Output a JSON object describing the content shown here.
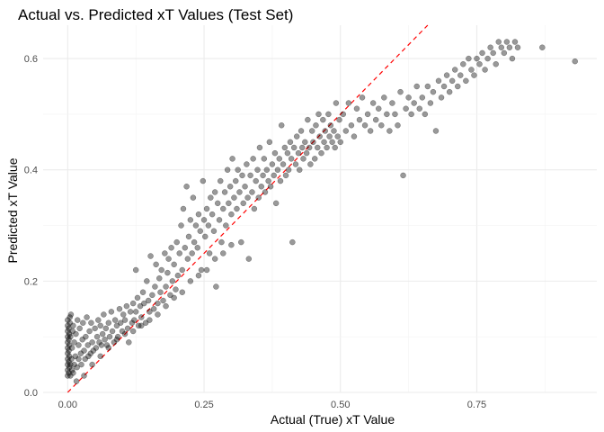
{
  "chart_data": {
    "type": "scatter",
    "title": "Actual vs. Predicted xT Values (Test Set)",
    "xlabel": "Actual (True) xT Value",
    "ylabel": "Predicted xT Value",
    "xlim": [
      -0.045,
      0.97
    ],
    "ylim": [
      0.0,
      0.66
    ],
    "x_ticks": [
      0.0,
      0.25,
      0.5,
      0.75
    ],
    "x_tick_labels": [
      "0.00",
      "0.25",
      "0.50",
      "0.75"
    ],
    "y_ticks": [
      0.0,
      0.2,
      0.4,
      0.6
    ],
    "y_tick_labels": [
      "0.0",
      "0.2",
      "0.4",
      "0.6"
    ],
    "grid": true,
    "legend": "none",
    "reference_line": {
      "type": "identity",
      "slope": 1,
      "intercept": 0,
      "style": "dashed",
      "color": "#ff0000"
    },
    "point_color": "#000000",
    "point_opacity": 0.4,
    "points": [
      [
        0.0,
        0.03
      ],
      [
        0.0,
        0.04
      ],
      [
        0.0,
        0.05
      ],
      [
        0.0,
        0.06
      ],
      [
        0.0,
        0.07
      ],
      [
        0.0,
        0.08
      ],
      [
        0.0,
        0.09
      ],
      [
        0.0,
        0.1
      ],
      [
        0.0,
        0.11
      ],
      [
        0.0,
        0.12
      ],
      [
        0.0,
        0.13
      ],
      [
        0.002,
        0.035
      ],
      [
        0.002,
        0.055
      ],
      [
        0.002,
        0.075
      ],
      [
        0.002,
        0.095
      ],
      [
        0.002,
        0.115
      ],
      [
        0.003,
        0.045
      ],
      [
        0.003,
        0.065
      ],
      [
        0.003,
        0.085
      ],
      [
        0.003,
        0.105
      ],
      [
        0.004,
        0.125
      ],
      [
        0.004,
        0.135
      ],
      [
        0.005,
        0.03
      ],
      [
        0.005,
        0.05
      ],
      [
        0.005,
        0.1
      ],
      [
        0.006,
        0.14
      ],
      [
        0.007,
        0.06
      ],
      [
        0.008,
        0.04
      ],
      [
        0.008,
        0.08
      ],
      [
        0.009,
        0.11
      ],
      [
        0.01,
        0.035
      ],
      [
        0.01,
        0.12
      ],
      [
        0.012,
        0.05
      ],
      [
        0.012,
        0.09
      ],
      [
        0.014,
        0.065
      ],
      [
        0.015,
        0.105
      ],
      [
        0.017,
        0.045
      ],
      [
        0.018,
        0.13
      ],
      [
        0.02,
        0.06
      ],
      [
        0.02,
        0.085
      ],
      [
        0.022,
        0.115
      ],
      [
        0.024,
        0.07
      ],
      [
        0.025,
        0.05
      ],
      [
        0.027,
        0.095
      ],
      [
        0.028,
        0.125
      ],
      [
        0.03,
        0.075
      ],
      [
        0.032,
        0.06
      ],
      [
        0.033,
        0.1
      ],
      [
        0.035,
        0.135
      ],
      [
        0.037,
        0.085
      ],
      [
        0.038,
        0.065
      ],
      [
        0.04,
        0.11
      ],
      [
        0.042,
        0.07
      ],
      [
        0.043,
        0.125
      ],
      [
        0.045,
        0.09
      ],
      [
        0.047,
        0.075
      ],
      [
        0.05,
        0.115
      ],
      [
        0.052,
        0.08
      ],
      [
        0.054,
        0.1
      ],
      [
        0.056,
        0.13
      ],
      [
        0.058,
        0.09
      ],
      [
        0.06,
        0.12
      ],
      [
        0.062,
        0.085
      ],
      [
        0.064,
        0.105
      ],
      [
        0.066,
        0.14
      ],
      [
        0.068,
        0.095
      ],
      [
        0.07,
        0.115
      ],
      [
        0.072,
        0.085
      ],
      [
        0.075,
        0.125
      ],
      [
        0.077,
        0.1
      ],
      [
        0.08,
        0.145
      ],
      [
        0.082,
        0.11
      ],
      [
        0.085,
        0.09
      ],
      [
        0.087,
        0.13
      ],
      [
        0.09,
        0.12
      ],
      [
        0.092,
        0.1
      ],
      [
        0.095,
        0.15
      ],
      [
        0.097,
        0.125
      ],
      [
        0.1,
        0.11
      ],
      [
        0.102,
        0.14
      ],
      [
        0.105,
        0.13
      ],
      [
        0.108,
        0.155
      ],
      [
        0.11,
        0.115
      ],
      [
        0.112,
        0.09
      ],
      [
        0.115,
        0.145
      ],
      [
        0.118,
        0.125
      ],
      [
        0.12,
        0.16
      ],
      [
        0.122,
        0.13
      ],
      [
        0.125,
        0.22
      ],
      [
        0.125,
        0.145
      ],
      [
        0.128,
        0.17
      ],
      [
        0.13,
        0.12
      ],
      [
        0.133,
        0.155
      ],
      [
        0.135,
        0.135
      ],
      [
        0.138,
        0.18
      ],
      [
        0.14,
        0.16
      ],
      [
        0.143,
        0.125
      ],
      [
        0.145,
        0.2
      ],
      [
        0.148,
        0.165
      ],
      [
        0.15,
        0.145
      ],
      [
        0.152,
        0.245
      ],
      [
        0.155,
        0.175
      ],
      [
        0.158,
        0.15
      ],
      [
        0.16,
        0.19
      ],
      [
        0.162,
        0.23
      ],
      [
        0.165,
        0.16
      ],
      [
        0.168,
        0.205
      ],
      [
        0.17,
        0.18
      ],
      [
        0.172,
        0.22
      ],
      [
        0.175,
        0.165
      ],
      [
        0.178,
        0.25
      ],
      [
        0.18,
        0.19
      ],
      [
        0.183,
        0.215
      ],
      [
        0.185,
        0.24
      ],
      [
        0.188,
        0.175
      ],
      [
        0.19,
        0.26
      ],
      [
        0.192,
        0.2
      ],
      [
        0.195,
        0.23
      ],
      [
        0.198,
        0.185
      ],
      [
        0.2,
        0.27
      ],
      [
        0.202,
        0.21
      ],
      [
        0.205,
        0.25
      ],
      [
        0.208,
        0.3
      ],
      [
        0.21,
        0.22
      ],
      [
        0.212,
        0.33
      ],
      [
        0.215,
        0.26
      ],
      [
        0.218,
        0.37
      ],
      [
        0.22,
        0.24
      ],
      [
        0.222,
        0.28
      ],
      [
        0.225,
        0.31
      ],
      [
        0.228,
        0.25
      ],
      [
        0.23,
        0.35
      ],
      [
        0.232,
        0.27
      ],
      [
        0.235,
        0.3
      ],
      [
        0.238,
        0.26
      ],
      [
        0.24,
        0.32
      ],
      [
        0.243,
        0.29
      ],
      [
        0.245,
        0.22
      ],
      [
        0.248,
        0.38
      ],
      [
        0.25,
        0.31
      ],
      [
        0.252,
        0.28
      ],
      [
        0.255,
        0.33
      ],
      [
        0.258,
        0.3
      ],
      [
        0.26,
        0.25
      ],
      [
        0.262,
        0.35
      ],
      [
        0.265,
        0.32
      ],
      [
        0.268,
        0.29
      ],
      [
        0.27,
        0.36
      ],
      [
        0.272,
        0.19
      ],
      [
        0.275,
        0.34
      ],
      [
        0.278,
        0.31
      ],
      [
        0.28,
        0.38
      ],
      [
        0.282,
        0.27
      ],
      [
        0.285,
        0.33
      ],
      [
        0.288,
        0.36
      ],
      [
        0.29,
        0.3
      ],
      [
        0.293,
        0.4
      ],
      [
        0.295,
        0.34
      ],
      [
        0.298,
        0.37
      ],
      [
        0.3,
        0.32
      ],
      [
        0.302,
        0.42
      ],
      [
        0.305,
        0.35
      ],
      [
        0.308,
        0.38
      ],
      [
        0.31,
        0.33
      ],
      [
        0.312,
        0.4
      ],
      [
        0.315,
        0.36
      ],
      [
        0.318,
        0.27
      ],
      [
        0.32,
        0.39
      ],
      [
        0.322,
        0.34
      ],
      [
        0.325,
        0.37
      ],
      [
        0.328,
        0.41
      ],
      [
        0.33,
        0.35
      ],
      [
        0.332,
        0.24
      ],
      [
        0.335,
        0.39
      ],
      [
        0.338,
        0.36
      ],
      [
        0.34,
        0.42
      ],
      [
        0.342,
        0.33
      ],
      [
        0.345,
        0.38
      ],
      [
        0.348,
        0.4
      ],
      [
        0.35,
        0.35
      ],
      [
        0.352,
        0.44
      ],
      [
        0.355,
        0.37
      ],
      [
        0.358,
        0.39
      ],
      [
        0.36,
        0.42
      ],
      [
        0.362,
        0.36
      ],
      [
        0.365,
        0.4
      ],
      [
        0.368,
        0.38
      ],
      [
        0.37,
        0.45
      ],
      [
        0.372,
        0.37
      ],
      [
        0.375,
        0.41
      ],
      [
        0.378,
        0.39
      ],
      [
        0.38,
        0.43
      ],
      [
        0.382,
        0.34
      ],
      [
        0.385,
        0.4
      ],
      [
        0.388,
        0.42
      ],
      [
        0.39,
        0.38
      ],
      [
        0.392,
        0.48
      ],
      [
        0.395,
        0.41
      ],
      [
        0.398,
        0.44
      ],
      [
        0.4,
        0.39
      ],
      [
        0.403,
        0.43
      ],
      [
        0.405,
        0.4
      ],
      [
        0.408,
        0.45
      ],
      [
        0.41,
        0.42
      ],
      [
        0.412,
        0.27
      ],
      [
        0.415,
        0.44
      ],
      [
        0.418,
        0.41
      ],
      [
        0.42,
        0.46
      ],
      [
        0.423,
        0.43
      ],
      [
        0.425,
        0.4
      ],
      [
        0.428,
        0.47
      ],
      [
        0.43,
        0.44
      ],
      [
        0.432,
        0.42
      ],
      [
        0.435,
        0.45
      ],
      [
        0.438,
        0.43
      ],
      [
        0.44,
        0.49
      ],
      [
        0.443,
        0.44
      ],
      [
        0.445,
        0.41
      ],
      [
        0.448,
        0.47
      ],
      [
        0.45,
        0.45
      ],
      [
        0.453,
        0.42
      ],
      [
        0.455,
        0.48
      ],
      [
        0.458,
        0.44
      ],
      [
        0.46,
        0.5
      ],
      [
        0.462,
        0.46
      ],
      [
        0.465,
        0.43
      ],
      [
        0.468,
        0.49
      ],
      [
        0.47,
        0.45
      ],
      [
        0.472,
        0.47
      ],
      [
        0.475,
        0.44
      ],
      [
        0.478,
        0.5
      ],
      [
        0.48,
        0.46
      ],
      [
        0.482,
        0.48
      ],
      [
        0.485,
        0.45
      ],
      [
        0.488,
        0.47
      ],
      [
        0.49,
        0.44
      ],
      [
        0.492,
        0.52
      ],
      [
        0.495,
        0.46
      ],
      [
        0.498,
        0.49
      ],
      [
        0.5,
        0.45
      ],
      [
        0.505,
        0.5
      ],
      [
        0.51,
        0.47
      ],
      [
        0.515,
        0.52
      ],
      [
        0.52,
        0.48
      ],
      [
        0.525,
        0.46
      ],
      [
        0.53,
        0.51
      ],
      [
        0.535,
        0.49
      ],
      [
        0.54,
        0.53
      ],
      [
        0.545,
        0.48
      ],
      [
        0.55,
        0.5
      ],
      [
        0.555,
        0.47
      ],
      [
        0.56,
        0.52
      ],
      [
        0.565,
        0.49
      ],
      [
        0.57,
        0.51
      ],
      [
        0.575,
        0.48
      ],
      [
        0.58,
        0.53
      ],
      [
        0.585,
        0.5
      ],
      [
        0.59,
        0.47
      ],
      [
        0.595,
        0.52
      ],
      [
        0.6,
        0.5
      ],
      [
        0.605,
        0.48
      ],
      [
        0.61,
        0.54
      ],
      [
        0.615,
        0.39
      ],
      [
        0.62,
        0.51
      ],
      [
        0.625,
        0.53
      ],
      [
        0.63,
        0.5
      ],
      [
        0.635,
        0.52
      ],
      [
        0.64,
        0.55
      ],
      [
        0.645,
        0.51
      ],
      [
        0.65,
        0.53
      ],
      [
        0.655,
        0.5
      ],
      [
        0.66,
        0.55
      ],
      [
        0.665,
        0.52
      ],
      [
        0.67,
        0.54
      ],
      [
        0.675,
        0.47
      ],
      [
        0.68,
        0.56
      ],
      [
        0.685,
        0.53
      ],
      [
        0.69,
        0.55
      ],
      [
        0.695,
        0.57
      ],
      [
        0.7,
        0.54
      ],
      [
        0.705,
        0.56
      ],
      [
        0.71,
        0.58
      ],
      [
        0.715,
        0.55
      ],
      [
        0.72,
        0.57
      ],
      [
        0.725,
        0.59
      ],
      [
        0.73,
        0.56
      ],
      [
        0.735,
        0.6
      ],
      [
        0.74,
        0.58
      ],
      [
        0.745,
        0.57
      ],
      [
        0.75,
        0.6
      ],
      [
        0.755,
        0.59
      ],
      [
        0.76,
        0.61
      ],
      [
        0.765,
        0.58
      ],
      [
        0.77,
        0.6
      ],
      [
        0.775,
        0.62
      ],
      [
        0.78,
        0.61
      ],
      [
        0.785,
        0.59
      ],
      [
        0.79,
        0.63
      ],
      [
        0.795,
        0.62
      ],
      [
        0.8,
        0.61
      ],
      [
        0.805,
        0.63
      ],
      [
        0.81,
        0.62
      ],
      [
        0.815,
        0.6
      ],
      [
        0.82,
        0.63
      ],
      [
        0.825,
        0.62
      ],
      [
        0.87,
        0.62
      ],
      [
        0.93,
        0.595
      ],
      [
        0.016,
        0.02
      ],
      [
        0.03,
        0.03
      ],
      [
        0.045,
        0.05
      ],
      [
        0.06,
        0.065
      ],
      [
        0.075,
        0.08
      ],
      [
        0.09,
        0.095
      ],
      [
        0.105,
        0.105
      ],
      [
        0.12,
        0.11
      ],
      [
        0.135,
        0.12
      ],
      [
        0.15,
        0.13
      ],
      [
        0.165,
        0.14
      ],
      [
        0.18,
        0.155
      ],
      [
        0.195,
        0.17
      ],
      [
        0.21,
        0.18
      ],
      [
        0.225,
        0.2
      ],
      [
        0.24,
        0.21
      ],
      [
        0.255,
        0.22
      ],
      [
        0.27,
        0.24
      ],
      [
        0.285,
        0.25
      ],
      [
        0.3,
        0.265
      ]
    ]
  }
}
